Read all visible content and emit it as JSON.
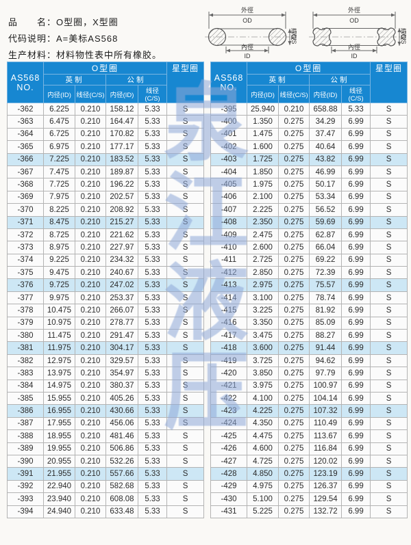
{
  "colors": {
    "accent": "#1787d1",
    "row-highlight": "#cde7f5",
    "wm": "#8fa9d8"
  },
  "info": {
    "line1": {
      "label": "品　　名：",
      "value": "O型圈，X型圈"
    },
    "line2": {
      "label": "代码说明：",
      "value": "A=美标AS568"
    },
    "line3": {
      "label": "生产材料：",
      "value": "材料物性表中所有橡胶。"
    }
  },
  "diagram": {
    "od_cn": "外徑",
    "od": "OD",
    "id_cn": "內徑",
    "id": "ID",
    "cs_cn": "線徑",
    "cs": "C/S"
  },
  "table_header": {
    "no": "AS568",
    "no2": "NO.",
    "group": "O型圈",
    "star": "星型圈",
    "imperial": "英制",
    "metric": "公制",
    "id_col": "内径(ID)",
    "cs_col": "线径(C/S)"
  },
  "watermark": {
    "chars": [
      "泉",
      "江",
      "液",
      "压"
    ]
  },
  "left_table": {
    "rows": [
      [
        "-362",
        "6.225",
        "0.210",
        "158.12",
        "5.33",
        "S"
      ],
      [
        "-363",
        "6.475",
        "0.210",
        "164.47",
        "5.33",
        "S"
      ],
      [
        "-364",
        "6.725",
        "0.210",
        "170.82",
        "5.33",
        "S"
      ],
      [
        "-365",
        "6.975",
        "0.210",
        "177.17",
        "5.33",
        "S"
      ],
      [
        "-366",
        "7.225",
        "0.210",
        "183.52",
        "5.33",
        "S"
      ],
      [
        "-367",
        "7.475",
        "0.210",
        "189.87",
        "5.33",
        "S"
      ],
      [
        "-368",
        "7.725",
        "0.210",
        "196.22",
        "5.33",
        "S"
      ],
      [
        "-369",
        "7.975",
        "0.210",
        "202.57",
        "5.33",
        "S"
      ],
      [
        "-370",
        "8.225",
        "0.210",
        "208.92",
        "5.33",
        "S"
      ],
      [
        "-371",
        "8.475",
        "0.210",
        "215.27",
        "5.33",
        "S"
      ],
      [
        "-372",
        "8.725",
        "0.210",
        "221.62",
        "5.33",
        "S"
      ],
      [
        "-373",
        "8.975",
        "0.210",
        "227.97",
        "5.33",
        "S"
      ],
      [
        "-374",
        "9.225",
        "0.210",
        "234.32",
        "5.33",
        "S"
      ],
      [
        "-375",
        "9.475",
        "0.210",
        "240.67",
        "5.33",
        "S"
      ],
      [
        "-376",
        "9.725",
        "0.210",
        "247.02",
        "5.33",
        "S"
      ],
      [
        "-377",
        "9.975",
        "0.210",
        "253.37",
        "5.33",
        "S"
      ],
      [
        "-378",
        "10.475",
        "0.210",
        "266.07",
        "5.33",
        "S"
      ],
      [
        "-379",
        "10.975",
        "0.210",
        "278.77",
        "5.33",
        "S"
      ],
      [
        "-380",
        "11.475",
        "0.210",
        "291.47",
        "5.33",
        "S"
      ],
      [
        "-381",
        "11.975",
        "0.210",
        "304.17",
        "5.33",
        "S"
      ],
      [
        "-382",
        "12.975",
        "0.210",
        "329.57",
        "5.33",
        "S"
      ],
      [
        "-383",
        "13.975",
        "0.210",
        "354.97",
        "5.33",
        "S"
      ],
      [
        "-384",
        "14.975",
        "0.210",
        "380.37",
        "5.33",
        "S"
      ],
      [
        "-385",
        "15.955",
        "0.210",
        "405.26",
        "5.33",
        "S"
      ],
      [
        "-386",
        "16.955",
        "0.210",
        "430.66",
        "5.33",
        "S"
      ],
      [
        "-387",
        "17.955",
        "0.210",
        "456.06",
        "5.33",
        "S"
      ],
      [
        "-388",
        "18.955",
        "0.210",
        "481.46",
        "5.33",
        "S"
      ],
      [
        "-389",
        "19.955",
        "0.210",
        "506.86",
        "5.33",
        "S"
      ],
      [
        "-390",
        "20.955",
        "0.210",
        "532.26",
        "5.33",
        "S"
      ],
      [
        "-391",
        "21.955",
        "0.210",
        "557.66",
        "5.33",
        "S"
      ],
      [
        "-392",
        "22.940",
        "0.210",
        "582.68",
        "5.33",
        "S"
      ],
      [
        "-393",
        "23.940",
        "0.210",
        "608.08",
        "5.33",
        "S"
      ],
      [
        "-394",
        "24.940",
        "0.210",
        "633.48",
        "5.33",
        "S"
      ]
    ]
  },
  "right_table": {
    "rows": [
      [
        "-395",
        "25.940",
        "0.210",
        "658.88",
        "5.33",
        "S"
      ],
      [
        "-400",
        "1.350",
        "0.275",
        "34.29",
        "6.99",
        "S"
      ],
      [
        "-401",
        "1.475",
        "0.275",
        "37.47",
        "6.99",
        "S"
      ],
      [
        "-402",
        "1.600",
        "0.275",
        "40.64",
        "6.99",
        "S"
      ],
      [
        "-403",
        "1.725",
        "0.275",
        "43.82",
        "6.99",
        "S"
      ],
      [
        "-404",
        "1.850",
        "0.275",
        "46.99",
        "6.99",
        "S"
      ],
      [
        "-405",
        "1.975",
        "0.275",
        "50.17",
        "6.99",
        "S"
      ],
      [
        "-406",
        "2.100",
        "0.275",
        "53.34",
        "6.99",
        "S"
      ],
      [
        "-407",
        "2.225",
        "0.275",
        "56.52",
        "6.99",
        "S"
      ],
      [
        "-408",
        "2.350",
        "0.275",
        "59.69",
        "6.99",
        "S"
      ],
      [
        "-409",
        "2.475",
        "0.275",
        "62.87",
        "6.99",
        "S"
      ],
      [
        "-410",
        "2.600",
        "0.275",
        "66.04",
        "6.99",
        "S"
      ],
      [
        "-411",
        "2.725",
        "0.275",
        "69.22",
        "6.99",
        "S"
      ],
      [
        "-412",
        "2.850",
        "0.275",
        "72.39",
        "6.99",
        "S"
      ],
      [
        "-413",
        "2.975",
        "0.275",
        "75.57",
        "6.99",
        "S"
      ],
      [
        "-414",
        "3.100",
        "0.275",
        "78.74",
        "6.99",
        "S"
      ],
      [
        "-415",
        "3.225",
        "0.275",
        "81.92",
        "6.99",
        "S"
      ],
      [
        "-416",
        "3.350",
        "0.275",
        "85.09",
        "6.99",
        "S"
      ],
      [
        "-417",
        "3.475",
        "0.275",
        "88.27",
        "6.99",
        "S"
      ],
      [
        "-418",
        "3.600",
        "0.275",
        "91.44",
        "6.99",
        "S"
      ],
      [
        "-419",
        "3.725",
        "0.275",
        "94.62",
        "6.99",
        "S"
      ],
      [
        "-420",
        "3.850",
        "0.275",
        "97.79",
        "6.99",
        "S"
      ],
      [
        "-421",
        "3.975",
        "0.275",
        "100.97",
        "6.99",
        "S"
      ],
      [
        "-422",
        "4.100",
        "0.275",
        "104.14",
        "6.99",
        "S"
      ],
      [
        "-423",
        "4.225",
        "0.275",
        "107.32",
        "6.99",
        "S"
      ],
      [
        "-424",
        "4.350",
        "0.275",
        "110.49",
        "6.99",
        "S"
      ],
      [
        "-425",
        "4.475",
        "0.275",
        "113.67",
        "6.99",
        "S"
      ],
      [
        "-426",
        "4.600",
        "0.275",
        "116.84",
        "6.99",
        "S"
      ],
      [
        "-427",
        "4.725",
        "0.275",
        "120.02",
        "6.99",
        "S"
      ],
      [
        "-428",
        "4.850",
        "0.275",
        "123.19",
        "6.99",
        "S"
      ],
      [
        "-429",
        "4.975",
        "0.275",
        "126.37",
        "6.99",
        "S"
      ],
      [
        "-430",
        "5.100",
        "0.275",
        "129.54",
        "6.99",
        "S"
      ],
      [
        "-431",
        "5.225",
        "0.275",
        "132.72",
        "6.99",
        "S"
      ]
    ]
  }
}
